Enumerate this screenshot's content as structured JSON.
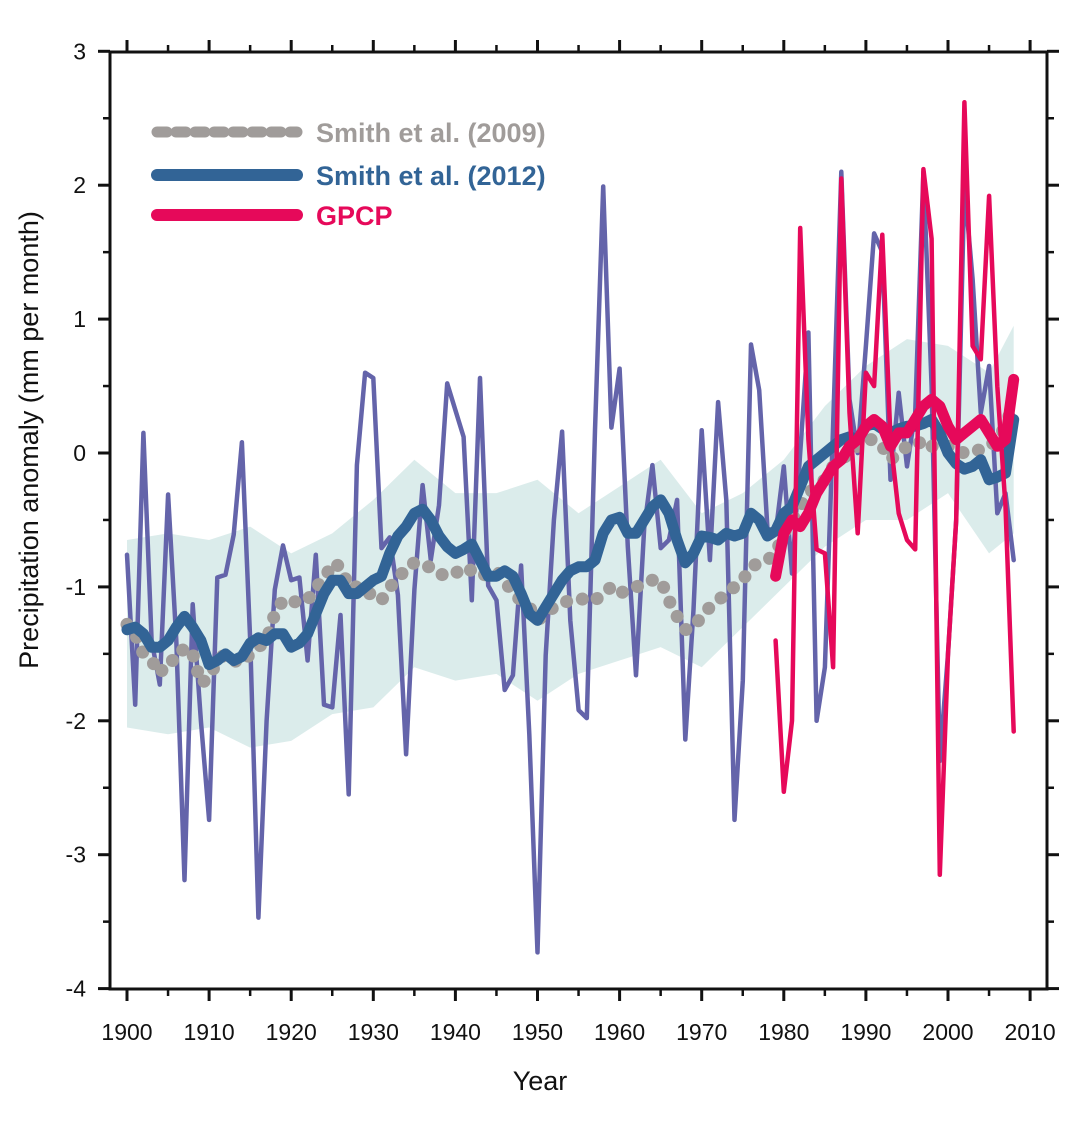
{
  "chart_data": {
    "type": "line",
    "title": "",
    "xlabel": "Year",
    "ylabel": "Precipitation anomaly (mm per month)",
    "xlim": [
      1900,
      2010
    ],
    "ylim": [
      -4,
      3
    ],
    "xticks": [
      1900,
      1910,
      1920,
      1930,
      1940,
      1950,
      1960,
      1970,
      1980,
      1990,
      2000,
      2010
    ],
    "yticks": [
      -4,
      -3,
      -2,
      -1,
      0,
      1,
      2,
      3
    ],
    "xtick_labels": [
      "1900",
      "1910",
      "1920",
      "1930",
      "1940",
      "1950",
      "1960",
      "1970",
      "1980",
      "1990",
      "2000",
      "2010"
    ],
    "ytick_labels": [
      "-4",
      "-3",
      "-2",
      "-1",
      "0",
      "1",
      "2",
      "3"
    ],
    "grid": false,
    "legend_position": "top-left",
    "colors": {
      "smith2009": "#a09c9a",
      "smith2012": "#326496",
      "smith2012_annual": "#6464aa",
      "gpcp": "#e6095a",
      "band": "#dbeceb"
    },
    "legend": [
      {
        "label": "Smith et al. (2009)",
        "series": "smith2009",
        "style": "dotted"
      },
      {
        "label": "Smith et al. (2012)",
        "series": "smith2012",
        "style": "solid"
      },
      {
        "label": "GPCP",
        "series": "gpcp",
        "style": "solid"
      }
    ],
    "band": {
      "name": "Smith et al. (2012) uncertainty range",
      "x": [
        1900,
        1905,
        1910,
        1915,
        1920,
        1925,
        1930,
        1935,
        1940,
        1945,
        1950,
        1955,
        1960,
        1965,
        1970,
        1975,
        1980,
        1985,
        1990,
        1995,
        2000,
        2005,
        2008
      ],
      "upper": [
        -0.65,
        -0.6,
        -0.65,
        -0.55,
        -0.75,
        -0.6,
        -0.35,
        -0.05,
        -0.3,
        -0.3,
        -0.2,
        -0.45,
        -0.25,
        -0.05,
        -0.45,
        -0.3,
        -0.05,
        0.35,
        0.65,
        0.85,
        0.8,
        0.6,
        0.95
      ],
      "lower": [
        -2.05,
        -2.1,
        -2.05,
        -2.2,
        -2.15,
        -1.95,
        -1.9,
        -1.6,
        -1.7,
        -1.65,
        -1.85,
        -1.65,
        -1.55,
        -1.45,
        -1.6,
        -1.3,
        -1.0,
        -0.7,
        -0.5,
        -0.5,
        -0.3,
        -0.75,
        -0.6
      ]
    },
    "series": [
      {
        "name": "Smith et al. (2012) annual",
        "key": "smith2012_annual",
        "x_start": 1900,
        "values": [
          -0.76,
          -1.88,
          0.15,
          -1.4,
          -1.73,
          -0.31,
          -1.4,
          -3.19,
          -1.13,
          -2.0,
          -2.74,
          -0.93,
          -0.91,
          -0.61,
          0.08,
          -1.4,
          -3.47,
          -2.0,
          -1.02,
          -0.69,
          -0.95,
          -0.93,
          -1.55,
          -0.76,
          -1.88,
          -1.9,
          -1.21,
          -2.55,
          -0.09,
          0.6,
          0.56,
          -0.71,
          -0.63,
          -1.06,
          -2.25,
          -1.02,
          -0.24,
          -0.8,
          -0.39,
          0.52,
          0.32,
          0.12,
          -1.1,
          0.56,
          -0.99,
          -1.1,
          -1.77,
          -1.66,
          -0.84,
          -2.1,
          -3.73,
          -1.51,
          -0.5,
          0.16,
          -1.25,
          -1.92,
          -1.98,
          0.17,
          1.99,
          0.19,
          0.63,
          -0.7,
          -1.66,
          -0.56,
          -0.09,
          -0.71,
          -0.65,
          -0.35,
          -2.14,
          -1.17,
          0.17,
          -0.8,
          0.38,
          -0.35,
          -2.74,
          -1.7,
          0.81,
          0.47,
          -0.56,
          -0.6,
          -0.1,
          -0.9,
          0.0,
          0.9,
          -2.0,
          -1.6,
          0.2,
          2.1,
          0.4,
          0.0,
          0.8,
          1.64,
          1.5,
          -0.2,
          0.45,
          -0.1,
          0.3,
          2.1,
          0.5,
          -2.3,
          -1.5,
          -0.5,
          2.0,
          1.3,
          0.3,
          0.65,
          -0.45,
          -0.3,
          -0.8
        ]
      },
      {
        "name": "Smith et al. (2009)",
        "key": "smith2009",
        "x_start": 1900,
        "values": [
          -1.28,
          -1.35,
          -1.5,
          -1.55,
          -1.65,
          -1.55,
          -1.55,
          -1.45,
          -1.5,
          -1.72,
          -1.68,
          -1.55,
          -1.5,
          -1.55,
          -1.57,
          -1.5,
          -1.45,
          -1.4,
          -1.2,
          -1.1,
          -1.12,
          -1.1,
          -1.1,
          -1.0,
          -0.95,
          -0.82,
          -0.85,
          -1.0,
          -1.0,
          -1.05,
          -1.05,
          -1.1,
          -1.0,
          -0.95,
          -0.85,
          -0.82,
          -0.85,
          -0.85,
          -0.9,
          -0.92,
          -0.9,
          -0.85,
          -0.88,
          -0.92,
          -0.9,
          -0.88,
          -0.95,
          -1.05,
          -1.1,
          -1.15,
          -1.25,
          -1.2,
          -1.15,
          -1.12,
          -1.1,
          -1.1,
          -1.08,
          -1.1,
          -1.05,
          -1.0,
          -1.05,
          -1.02,
          -1.0,
          -0.98,
          -0.95,
          -0.95,
          -1.1,
          -1.22,
          -1.32,
          -1.3,
          -1.22,
          -1.15,
          -1.1,
          -1.05,
          -1.0,
          -0.95,
          -0.85,
          -0.82,
          -0.8,
          -0.75,
          -0.6,
          -0.5,
          -0.4,
          -0.3,
          -0.25,
          -0.2,
          -0.1,
          -0.05,
          0.0,
          0.05,
          0.1,
          0.1,
          0.05,
          -0.05,
          0.0,
          0.05,
          0.05,
          0.1,
          0.05,
          0.05,
          0.05,
          0.02,
          0.0,
          0.0,
          0.03,
          0.05,
          0.1,
          0.2,
          0.38
        ]
      },
      {
        "name": "Smith et al. (2012)",
        "key": "smith2012",
        "x_start": 1900,
        "values": [
          -1.32,
          -1.3,
          -1.35,
          -1.45,
          -1.45,
          -1.4,
          -1.3,
          -1.22,
          -1.3,
          -1.4,
          -1.58,
          -1.55,
          -1.5,
          -1.55,
          -1.52,
          -1.42,
          -1.38,
          -1.4,
          -1.35,
          -1.35,
          -1.45,
          -1.42,
          -1.35,
          -1.2,
          -1.05,
          -0.95,
          -0.95,
          -1.05,
          -1.05,
          -1.0,
          -0.95,
          -0.92,
          -0.75,
          -0.62,
          -0.55,
          -0.45,
          -0.42,
          -0.5,
          -0.62,
          -0.7,
          -0.75,
          -0.72,
          -0.68,
          -0.8,
          -0.92,
          -0.92,
          -0.88,
          -0.92,
          -1.05,
          -1.2,
          -1.25,
          -1.15,
          -1.05,
          -0.95,
          -0.88,
          -0.85,
          -0.85,
          -0.8,
          -0.6,
          -0.5,
          -0.48,
          -0.6,
          -0.6,
          -0.5,
          -0.4,
          -0.35,
          -0.45,
          -0.65,
          -0.82,
          -0.75,
          -0.62,
          -0.63,
          -0.65,
          -0.6,
          -0.62,
          -0.6,
          -0.45,
          -0.5,
          -0.62,
          -0.58,
          -0.45,
          -0.4,
          -0.25,
          -0.1,
          -0.05,
          0.0,
          0.05,
          0.1,
          0.12,
          0.1,
          0.2,
          0.22,
          0.18,
          0.15,
          0.18,
          0.2,
          0.2,
          0.22,
          0.25,
          0.15,
          0.0,
          -0.08,
          -0.12,
          -0.1,
          -0.05,
          -0.2,
          -0.18,
          -0.15,
          0.25
        ]
      },
      {
        "name": "GPCP annual",
        "key": "gpcp_annual",
        "x_start": 1979,
        "values": [
          -1.4,
          -2.53,
          -2.0,
          1.68,
          0.1,
          -0.72,
          -0.75,
          -1.6,
          2.05,
          0.3,
          -0.6,
          0.6,
          0.5,
          1.63,
          0.1,
          -0.45,
          -0.65,
          -0.72,
          2.12,
          1.6,
          -3.15,
          -1.5,
          -0.5,
          2.62,
          0.8,
          0.7,
          1.92,
          0.5,
          -0.4,
          -2.08
        ]
      },
      {
        "name": "GPCP",
        "key": "gpcp",
        "x_start": 1979,
        "values": [
          -0.92,
          -0.6,
          -0.5,
          -0.55,
          -0.45,
          -0.3,
          -0.2,
          -0.1,
          -0.05,
          0.05,
          0.1,
          0.2,
          0.25,
          0.2,
          0.05,
          0.15,
          0.15,
          0.25,
          0.35,
          0.4,
          0.35,
          0.2,
          0.1,
          0.15,
          0.2,
          0.25,
          0.15,
          0.05,
          0.1,
          0.55
        ]
      }
    ]
  }
}
